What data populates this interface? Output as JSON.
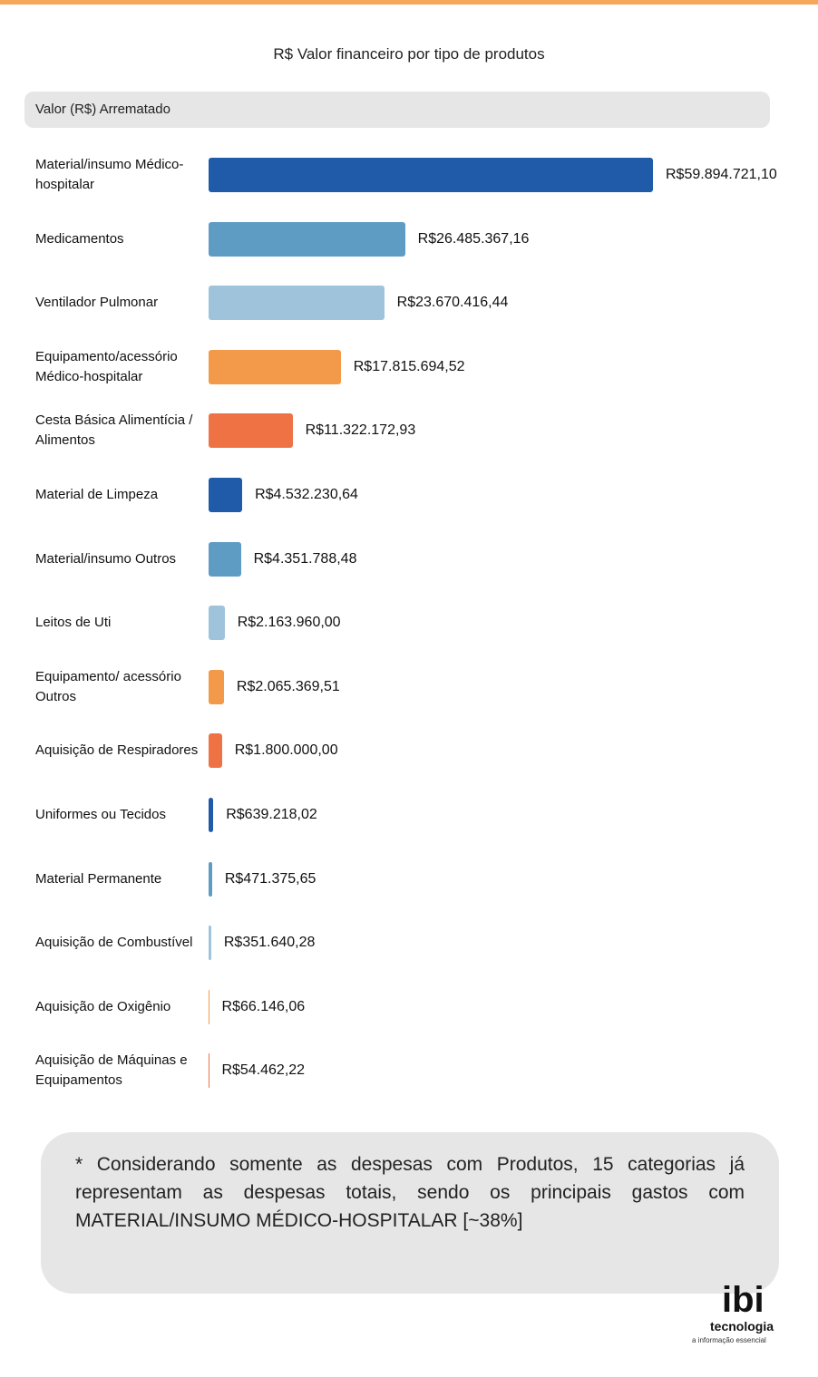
{
  "chart_data": {
    "type": "bar",
    "orientation": "horizontal",
    "title": "R$ Valor financeiro por tipo de produtos",
    "subtitle": "Valor (R$) Arrematado",
    "categories": [
      "Material/insumo Médico-hospitalar",
      "Medicamentos",
      "Ventilador Pulmonar",
      "Equipamento/acessório Médico-hospitalar",
      "Cesta Básica Alimentícia / Alimentos",
      "Material de Limpeza",
      "Material/insumo Outros",
      "Leitos de Uti",
      "Equipamento/ acessório Outros",
      "Aquisição de Respiradores",
      "Uniformes ou Tecidos",
      "Material Permanente",
      "Aquisição de Combustível",
      "Aquisição de Oxigênio",
      "Aquisição de Máquinas e Equipamentos"
    ],
    "values": [
      59894721.1,
      26485367.16,
      23670416.44,
      17815694.52,
      11322172.93,
      4532230.64,
      4351788.48,
      2163960.0,
      2065369.51,
      1800000.0,
      639218.02,
      471375.65,
      351640.28,
      66146.06,
      54462.22
    ],
    "value_labels": [
      "R$59.894.721,10",
      "R$26.485.367,16",
      "R$23.670.416,44",
      "R$17.815.694,52",
      "R$11.322.172,93",
      "R$4.532.230,64",
      "R$4.351.788,48",
      "R$2.163.960,00",
      "R$2.065.369,51",
      "R$1.800.000,00",
      "R$639.218,02",
      "R$471.375,65",
      "R$351.640,28",
      "R$66.146,06",
      "R$54.462,22"
    ],
    "colors": [
      "#1f5ba8",
      "#5f9cc4",
      "#a0c3dc",
      "#f39a4a",
      "#ef7245",
      "#1f5ba8",
      "#5f9cc4",
      "#a0c3dc",
      "#f39a4a",
      "#ef7245",
      "#1f5ba8",
      "#5f9cc4",
      "#a0c3dc",
      "#f39a4a",
      "#ef7245"
    ]
  },
  "note": "* Considerando somente as despesas com Produtos, 15 categorias já representam as despesas totais, sendo os principais gastos com MATERIAL/INSUMO MÉDICO-HOSPITALAR [~38%]",
  "logo": {
    "name": "ibi",
    "company": "tecnologia",
    "tagline": "a informação essencial"
  }
}
